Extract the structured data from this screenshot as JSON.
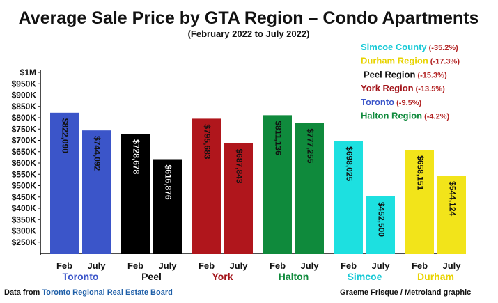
{
  "chart_data": {
    "type": "bar",
    "title": "Average Sale Price by GTA Region – Condo Apartments",
    "subtitle": "(February 2022 to July 2022)",
    "ylim": [
      200000,
      1000000
    ],
    "y_ticks": [
      {
        "value": 250000,
        "label": "$250K"
      },
      {
        "value": 300000,
        "label": "$300K"
      },
      {
        "value": 350000,
        "label": "$350K"
      },
      {
        "value": 400000,
        "label": "$400K"
      },
      {
        "value": 450000,
        "label": "$450K"
      },
      {
        "value": 500000,
        "label": "$500K"
      },
      {
        "value": 550000,
        "label": "$550K"
      },
      {
        "value": 600000,
        "label": "$600K"
      },
      {
        "value": 650000,
        "label": "$650K"
      },
      {
        "value": 700000,
        "label": "$700K"
      },
      {
        "value": 750000,
        "label": "$750K"
      },
      {
        "value": 800000,
        "label": "$800K"
      },
      {
        "value": 850000,
        "label": "$850K"
      },
      {
        "value": 900000,
        "label": "$900K"
      },
      {
        "value": 950000,
        "label": "$950K"
      },
      {
        "value": 1000000,
        "label": "$1M"
      }
    ],
    "period_labels": [
      "Feb",
      "July"
    ],
    "groups": [
      {
        "name": "Toronto",
        "color": "#3b55c9",
        "name_color": "#3b55c9",
        "label_color": "#111111",
        "values": [
          822090,
          744092
        ],
        "labels": [
          "$822,090",
          "$744,092"
        ]
      },
      {
        "name": "Peel",
        "color": "#000000",
        "name_color": "#111111",
        "label_color": "#ffffff",
        "values": [
          728678,
          616876
        ],
        "labels": [
          "$728,678",
          "$616,876"
        ]
      },
      {
        "name": "York",
        "color": "#b0161c",
        "name_color": "#a3141a",
        "label_color": "#111111",
        "values": [
          795683,
          687843
        ],
        "labels": [
          "$795,683",
          "$687,843"
        ]
      },
      {
        "name": "Halton",
        "color": "#0f8a3c",
        "name_color": "#0f8a3c",
        "label_color": "#111111",
        "values": [
          811136,
          777255
        ],
        "labels": [
          "$811,136",
          "$777,255"
        ]
      },
      {
        "name": "Simcoe",
        "color": "#1de0e0",
        "name_color": "#17c9d6",
        "label_color": "#111111",
        "values": [
          698025,
          452500
        ],
        "labels": [
          "$698,025",
          "$452,500"
        ]
      },
      {
        "name": "Durham",
        "color": "#f2e41a",
        "name_color": "#e8d300",
        "label_color": "#111111",
        "values": [
          658151,
          544124
        ],
        "labels": [
          "$658,151",
          "$544,124"
        ]
      }
    ],
    "legend": [
      {
        "name": "Simcoe County",
        "pct": "(-35.2%)",
        "color": "#17c9d6"
      },
      {
        "name": "Durham Region",
        "pct": "(-17.3%)",
        "color": "#e8d300"
      },
      {
        "name": "Peel Region",
        "pct": "(-15.3%)",
        "color": "#111111"
      },
      {
        "name": "York Region",
        "pct": "(-13.5%)",
        "color": "#a3141a"
      },
      {
        "name": "Toronto",
        "pct": "(-9.5%)",
        "color": "#3b55c9"
      },
      {
        "name": "Halton Region",
        "pct": "(-4.2%)",
        "color": "#0f8a3c"
      }
    ],
    "legend_position": "top-right",
    "grid": false
  },
  "footer": {
    "source_prefix": "Data from ",
    "source_name": "Toronto Regional Real Estate Board",
    "source_color": "#1f5fa8",
    "credit": "Graeme Frisque / Metroland graphic"
  }
}
